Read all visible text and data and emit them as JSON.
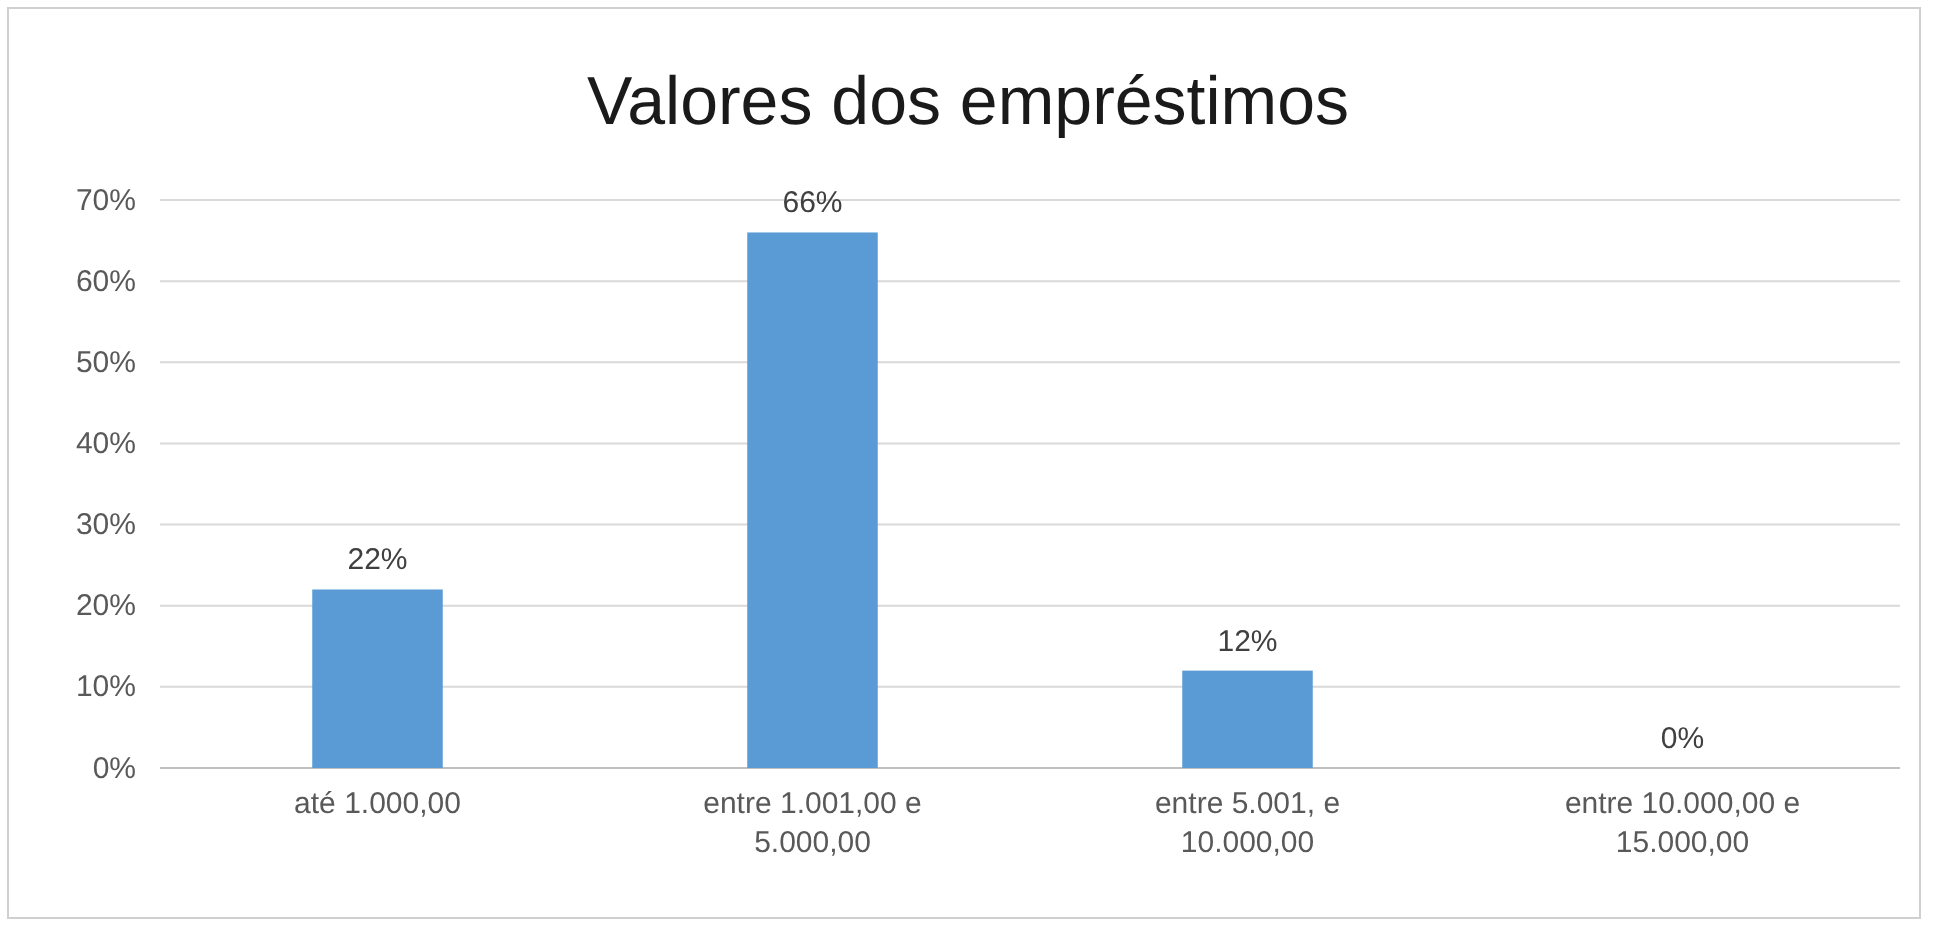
{
  "chart_data": {
    "type": "bar",
    "title": "Valores dos empréstimos",
    "categories": [
      "até 1.000,00",
      "entre 1.001,00 e 5.000,00",
      "entre 5.001, e 10.000,00",
      "entre 10.000,00 e 15.000,00"
    ],
    "values": [
      22,
      66,
      12,
      0
    ],
    "value_labels": [
      "22%",
      "66%",
      "12%",
      "0%"
    ],
    "color": "#5b9bd5",
    "ylim": [
      0,
      70
    ],
    "yticks": [
      {
        "value": 0,
        "label": "0%"
      },
      {
        "value": 10,
        "label": "10%"
      },
      {
        "value": 20,
        "label": "20%"
      },
      {
        "value": 30,
        "label": "30%"
      },
      {
        "value": 40,
        "label": "40%"
      },
      {
        "value": 50,
        "label": "50%"
      },
      {
        "value": 60,
        "label": "60%"
      },
      {
        "value": 70,
        "label": "70%"
      }
    ],
    "grid": "y"
  }
}
